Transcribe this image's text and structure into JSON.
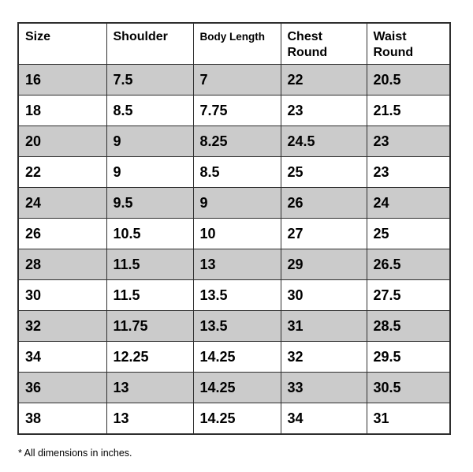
{
  "table": {
    "columns": [
      "Size",
      "Shoulder",
      "Body Length",
      "Chest\nRound",
      "Waist\nRound"
    ],
    "rows": [
      [
        "16",
        "7.5",
        "7",
        "22",
        "20.5"
      ],
      [
        "18",
        "8.5",
        "7.75",
        "23",
        "21.5"
      ],
      [
        "20",
        "9",
        "8.25",
        "24.5",
        "23"
      ],
      [
        "22",
        "9",
        "8.5",
        "25",
        "23"
      ],
      [
        "24",
        "9.5",
        "9",
        "26",
        "24"
      ],
      [
        "26",
        "10.5",
        "10",
        "27",
        "25"
      ],
      [
        "28",
        "11.5",
        "13",
        "29",
        "26.5"
      ],
      [
        "30",
        "11.5",
        "13.5",
        "30",
        "27.5"
      ],
      [
        "32",
        "11.75",
        "13.5",
        "31",
        "28.5"
      ],
      [
        "34",
        "12.25",
        "14.25",
        "32",
        "29.5"
      ],
      [
        "36",
        "13",
        "14.25",
        "33",
        "30.5"
      ],
      [
        "38",
        "13",
        "14.25",
        "34",
        "31"
      ]
    ]
  },
  "footnote": "* All dimensions in inches.",
  "colors": {
    "row_shaded": "#cbcbcb",
    "row_plain": "#ffffff",
    "border": "#2e2e2e",
    "text": "#000000"
  }
}
